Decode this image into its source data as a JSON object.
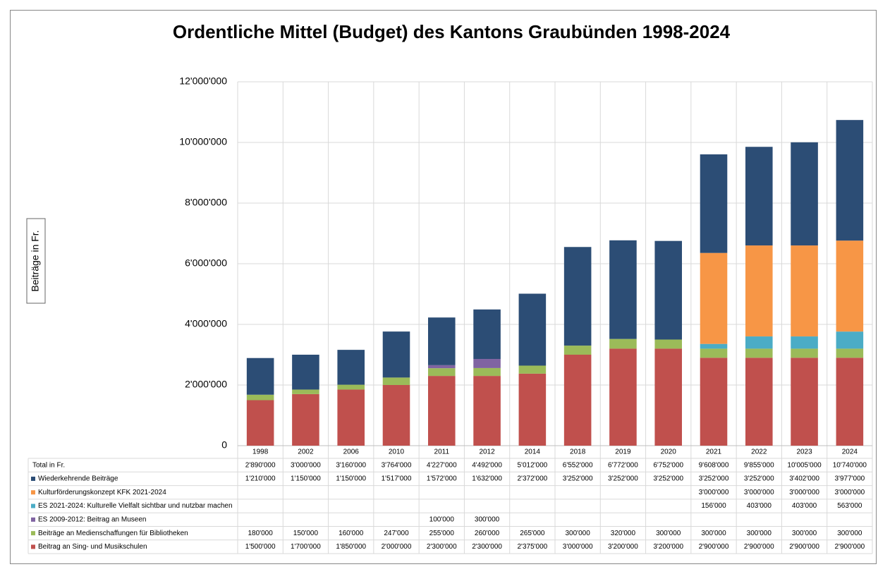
{
  "chart_data": {
    "type": "bar",
    "stacked": true,
    "title": "Ordentliche Mittel (Budget) des Kantons Graubünden 1998-2024",
    "y_label": "Beiträge in Fr.",
    "categories": [
      "1998",
      "2002",
      "2006",
      "2010",
      "2011",
      "2012",
      "2014",
      "2018",
      "2019",
      "2020",
      "2021",
      "2022",
      "2023",
      "2024"
    ],
    "ylim": [
      0,
      12000000
    ],
    "yticks": [
      0,
      {
        "value": 2000000,
        "label": "2'000'000"
      },
      {
        "value": 4000000,
        "label": "4'000'000"
      },
      {
        "value": 6000000,
        "label": "6'000'000"
      },
      {
        "value": 8000000,
        "label": "8'000'000"
      },
      {
        "value": 10000000,
        "label": "10'000'000"
      },
      {
        "value": 12000000,
        "label": "12'000'000"
      }
    ],
    "grid": true,
    "total": {
      "name": "Total in Fr.",
      "values": [
        2890000,
        3000000,
        3160000,
        3764000,
        4227000,
        4492000,
        5012000,
        6552000,
        6772000,
        6752000,
        9608000,
        9855000,
        10005000,
        10740000
      ],
      "value_labels": [
        "2'890'000",
        "3'000'000",
        "3'160'000",
        "3'764'000",
        "4'227'000",
        "4'492'000",
        "5'012'000",
        "6'552'000",
        "6'772'000",
        "6'752'000",
        "9'608'000",
        "9'855'000",
        "10'005'000",
        "10'740'000"
      ]
    },
    "series": [
      {
        "name": "Wiederkehrende Beiträge",
        "color": "#2c4d75",
        "values": [
          1210000,
          1150000,
          1150000,
          1517000,
          1572000,
          1632000,
          2372000,
          3252000,
          3252000,
          3252000,
          3252000,
          3252000,
          3402000,
          3977000
        ],
        "value_labels": [
          "1'210'000",
          "1'150'000",
          "1'150'000",
          "1'517'000",
          "1'572'000",
          "1'632'000",
          "2'372'000",
          "3'252'000",
          "3'252'000",
          "3'252'000",
          "3'252'000",
          "3'252'000",
          "3'402'000",
          "3'977'000"
        ]
      },
      {
        "name": "Kulturförderungskonzept KFK 2021-2024",
        "color": "#f79646",
        "values": [
          null,
          null,
          null,
          null,
          null,
          null,
          null,
          null,
          null,
          null,
          3000000,
          3000000,
          3000000,
          3000000
        ],
        "value_labels": [
          null,
          null,
          null,
          null,
          null,
          null,
          null,
          null,
          null,
          null,
          "3'000'000",
          "3'000'000",
          "3'000'000",
          "3'000'000"
        ]
      },
      {
        "name": "ES 2021-2024: Kulturelle Vielfalt sichtbar und nutzbar machen",
        "color": "#4bacc6",
        "values": [
          null,
          null,
          null,
          null,
          null,
          null,
          null,
          null,
          null,
          null,
          156000,
          403000,
          403000,
          563000
        ],
        "value_labels": [
          null,
          null,
          null,
          null,
          null,
          null,
          null,
          null,
          null,
          null,
          "156'000",
          "403'000",
          "403'000",
          "563'000"
        ]
      },
      {
        "name": "ES 2009-2012: Beitrag an Museen",
        "color": "#8064a2",
        "values": [
          null,
          null,
          null,
          null,
          100000,
          300000,
          null,
          null,
          null,
          null,
          null,
          null,
          null,
          null
        ],
        "value_labels": [
          null,
          null,
          null,
          null,
          "100'000",
          "300'000",
          null,
          null,
          null,
          null,
          null,
          null,
          null,
          null
        ]
      },
      {
        "name": "Beiträge an Medienschaffungen für Bibliotheken",
        "color": "#9bbb59",
        "values": [
          180000,
          150000,
          160000,
          247000,
          255000,
          260000,
          265000,
          300000,
          320000,
          300000,
          300000,
          300000,
          300000,
          300000
        ],
        "value_labels": [
          "180'000",
          "150'000",
          "160'000",
          "247'000",
          "255'000",
          "260'000",
          "265'000",
          "300'000",
          "320'000",
          "300'000",
          "300'000",
          "300'000",
          "300'000",
          "300'000"
        ]
      },
      {
        "name": "Beitrag an Sing- und Musikschulen",
        "color": "#c0504d",
        "values": [
          1500000,
          1700000,
          1850000,
          2000000,
          2300000,
          2300000,
          2375000,
          3000000,
          3200000,
          3200000,
          2900000,
          2900000,
          2900000,
          2900000
        ],
        "value_labels": [
          "1'500'000",
          "1'700'000",
          "1'850'000",
          "2'000'000",
          "2'300'000",
          "2'300'000",
          "2'375'000",
          "3'000'000",
          "3'200'000",
          "3'200'000",
          "2'900'000",
          "2'900'000",
          "2'900'000",
          "2'900'000"
        ]
      }
    ]
  }
}
